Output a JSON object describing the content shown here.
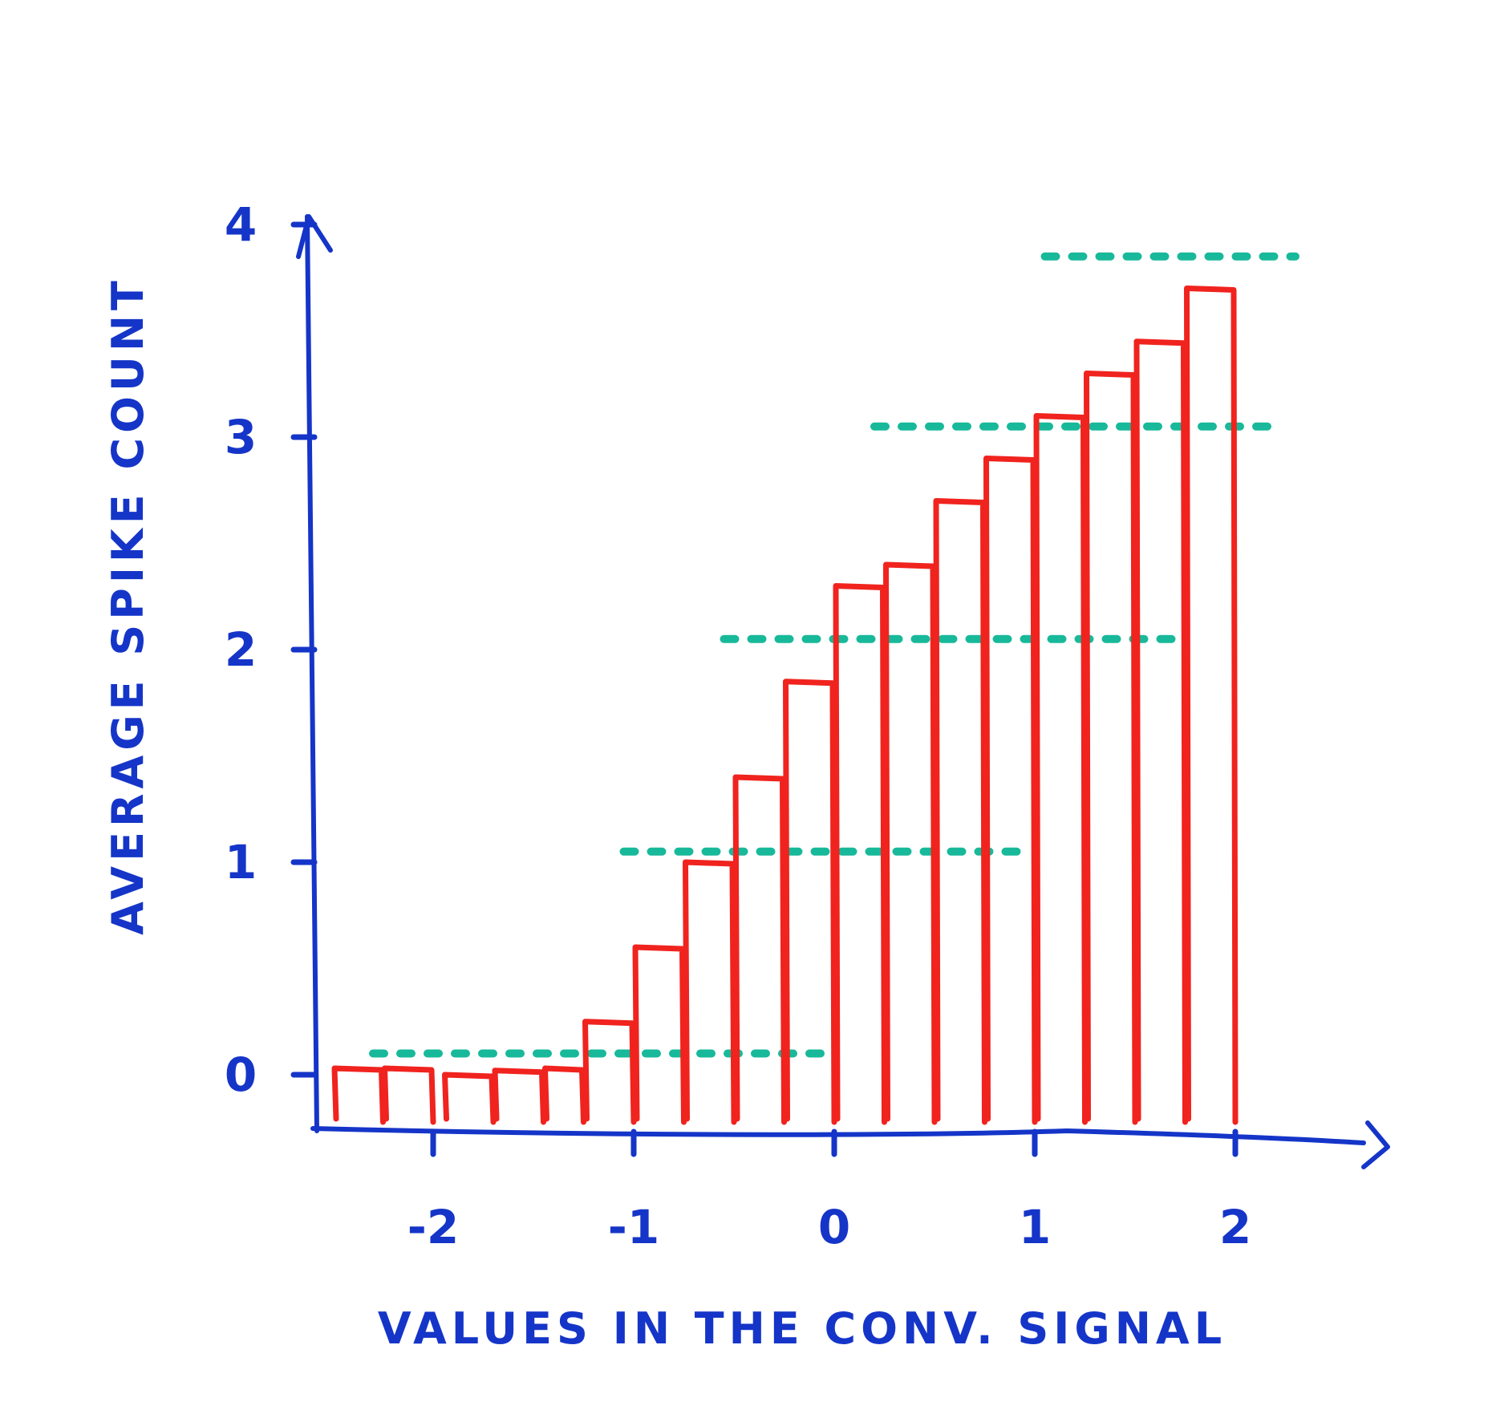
{
  "chart_data": {
    "type": "bar",
    "title": "",
    "xlabel": "VALUES IN THE CONV. SIGNAL",
    "ylabel": "AVERAGE SPIKE COUNT",
    "xlim": [
      -2.6,
      2.3
    ],
    "ylim": [
      -0.25,
      4.2
    ],
    "x_ticks": [
      -2,
      -1,
      0,
      1,
      2
    ],
    "x_tick_labels": [
      "-2",
      "-1",
      "0",
      "1",
      "2"
    ],
    "y_ticks": [
      0,
      1,
      2,
      3,
      4
    ],
    "y_tick_labels": [
      "0",
      "1",
      "2",
      "3",
      "4"
    ],
    "grid": false,
    "legend": "none",
    "bars": {
      "name": "",
      "x_edges": [
        -2.5,
        -2.25,
        -2.0,
        -1.75,
        -1.5,
        -1.25,
        -1.0,
        -0.75,
        -0.5,
        -0.25,
        0.0,
        0.25,
        0.5,
        0.75,
        1.0,
        1.25,
        1.5,
        1.75,
        2.0
      ],
      "x_starts": [
        -2.5,
        -2.25,
        -1.95,
        -1.7,
        -1.45,
        -1.25,
        -1.0,
        -0.75,
        -0.5,
        -0.25,
        0.0,
        0.25,
        0.5,
        0.75,
        1.0,
        1.25,
        1.5,
        1.75
      ],
      "x_ends": [
        -2.25,
        -2.0,
        -1.7,
        -1.45,
        -1.25,
        -1.0,
        -0.75,
        -0.5,
        -0.25,
        0.0,
        0.25,
        0.5,
        0.75,
        1.0,
        1.25,
        1.5,
        1.75,
        2.0
      ],
      "values": [
        0.03,
        0.03,
        0.0,
        0.02,
        0.03,
        0.25,
        0.6,
        1.0,
        1.4,
        1.85,
        2.3,
        2.4,
        2.7,
        2.9,
        3.1,
        3.3,
        3.45,
        3.7
      ],
      "color": "#f0231e"
    },
    "reference_lines": {
      "values": [
        0.1,
        1.05,
        2.05,
        3.05,
        3.85
      ],
      "x_ranges": [
        [
          -2.3,
          -0.05
        ],
        [
          -1.05,
          0.95
        ],
        [
          -0.55,
          1.75
        ],
        [
          0.2,
          2.2
        ],
        [
          1.05,
          2.3
        ]
      ],
      "color": "#18b99a",
      "style": "dotted"
    },
    "axis_color": "#1535c8"
  }
}
